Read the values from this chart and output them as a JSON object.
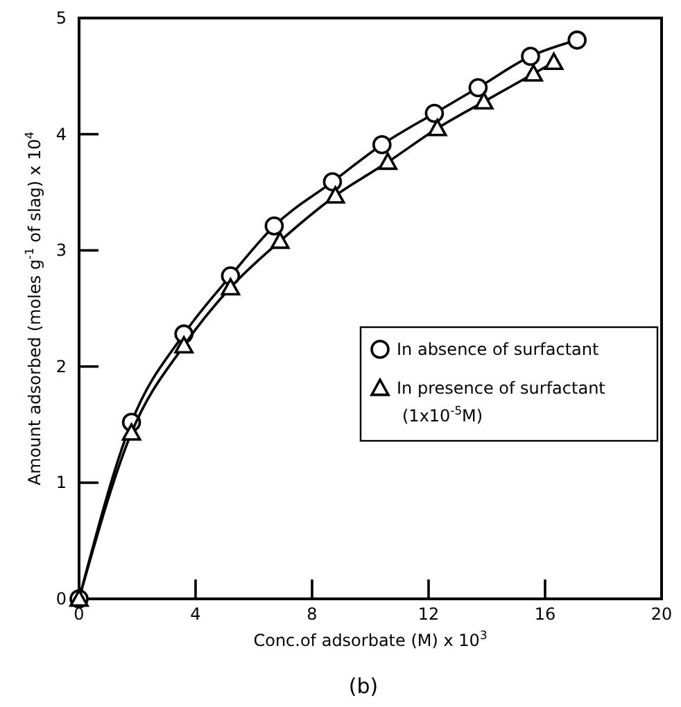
{
  "chart_data": {
    "type": "line",
    "xlabel": "Conc.of adsorbate (M) x 10$^{3}$",
    "ylabel": "Amount adsorbed (moles g$^{-1}$ of slag) x 10$^{4}$",
    "annotations": [
      "(b)"
    ],
    "xlim": [
      0,
      20
    ],
    "xticks": [
      0,
      4,
      8,
      12,
      16,
      20
    ],
    "ylim": [
      0,
      5
    ],
    "yticks": [
      0,
      1,
      2,
      3,
      4,
      5
    ],
    "grid": false,
    "legend": "right",
    "line_style": "solid",
    "series": [
      {
        "name": "In absence of surfactant",
        "color": "#000000",
        "marker": "circle",
        "x": [
          0,
          1.8,
          3.6,
          5.2,
          6.7,
          8.7,
          10.4,
          12.2,
          13.7,
          15.5,
          17.1
        ],
        "values": [
          0,
          1.52,
          2.28,
          2.78,
          3.21,
          3.59,
          3.91,
          4.18,
          4.4,
          4.67,
          4.81
        ]
      },
      {
        "name": "In presence of surfactant\n(1x10$^{-5}$M)",
        "color": "#000000",
        "marker": "triangle",
        "x": [
          0,
          1.8,
          3.6,
          5.2,
          6.9,
          8.8,
          10.6,
          12.3,
          13.9,
          15.6,
          16.3
        ],
        "values": [
          0,
          1.43,
          2.18,
          2.68,
          3.08,
          3.47,
          3.76,
          4.05,
          4.28,
          4.52,
          4.62
        ]
      }
    ]
  }
}
